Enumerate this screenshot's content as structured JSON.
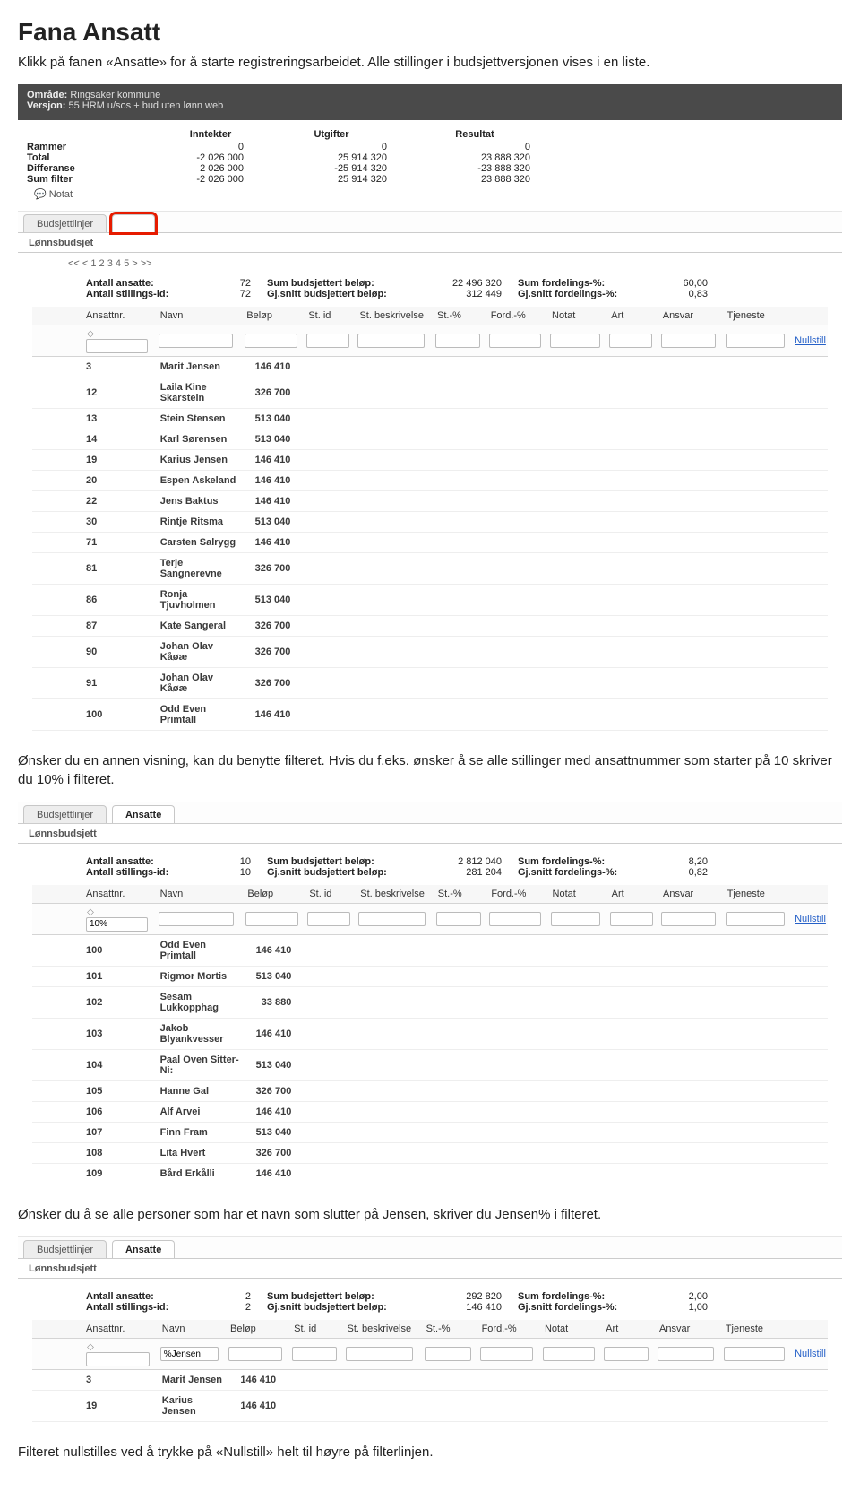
{
  "heading": "Fana Ansatt",
  "intro": "Klikk på fanen «Ansatte» for å starte registreringsarbeidet. Alle stillinger i budsjettversjonen vises i en liste.",
  "shot1": {
    "area_label": "Område:",
    "area_value": "Ringsaker kommune",
    "version_label": "Versjon:",
    "version_value": "55 HRM u/sos + bud uten lønn web",
    "summary": {
      "headers": [
        "",
        "Inntekter",
        "Utgifter",
        "Resultat"
      ],
      "rows": [
        {
          "label": "Rammer",
          "inntekter": "0",
          "utgifter": "0",
          "resultat": "0"
        },
        {
          "label": "Total",
          "inntekter": "-2 026 000",
          "utgifter": "25 914 320",
          "resultat": "23 888 320"
        },
        {
          "label": "Differanse",
          "inntekter": "2 026 000",
          "utgifter": "-25 914 320",
          "resultat": "-23 888 320"
        },
        {
          "label": "Sum filter",
          "inntekter": "-2 026 000",
          "utgifter": "25 914 320",
          "resultat": "23 888 320"
        }
      ]
    },
    "notat": "Notat",
    "tab1": "Budsjettlinjer",
    "tab2_blank": "",
    "panel_title": "Lønnsbudsjet",
    "pager": "<< < 1 2 3 4 5 > >>",
    "stats": {
      "antall_ansatte_lbl": "Antall ansatte:",
      "antall_ansatte_val": "72",
      "antall_stillingsid_lbl": "Antall stillings-id:",
      "antall_stillingsid_val": "72",
      "sum_budsjettert_lbl": "Sum budsjettert beløp:",
      "sum_budsjettert_val": "22 496 320",
      "gj_snitt_lbl": "Gj.snitt budsjettert beløp:",
      "gj_snitt_val": "312 449",
      "sum_ford_lbl": "Sum fordelings-%:",
      "sum_ford_val": "60,00",
      "gj_snitt_ford_lbl": "Gj.snitt fordelings-%:",
      "gj_snitt_ford_val": "0,83"
    },
    "columns": [
      "Ansattnr.",
      "Navn",
      "Beløp",
      "St. id",
      "St. beskrivelse",
      "St.-%",
      "Ford.-%",
      "Notat",
      "Art",
      "Ansvar",
      "Tjeneste"
    ],
    "nullstill": "Nullstill",
    "rows": [
      {
        "nr": "3",
        "navn": "Marit Jensen",
        "belop": "146 410"
      },
      {
        "nr": "12",
        "navn": "Laila Kine Skarstein",
        "belop": "326 700"
      },
      {
        "nr": "13",
        "navn": "Stein Stensen",
        "belop": "513 040"
      },
      {
        "nr": "14",
        "navn": "Karl Sørensen",
        "belop": "513 040"
      },
      {
        "nr": "19",
        "navn": "Karius Jensen",
        "belop": "146 410"
      },
      {
        "nr": "20",
        "navn": "Espen Askeland",
        "belop": "146 410"
      },
      {
        "nr": "22",
        "navn": "Jens Baktus",
        "belop": "146 410"
      },
      {
        "nr": "30",
        "navn": "Rintje Ritsma",
        "belop": "513 040"
      },
      {
        "nr": "71",
        "navn": "Carsten Salrygg",
        "belop": "146 410"
      },
      {
        "nr": "81",
        "navn": "Terje Sangnerevne",
        "belop": "326 700"
      },
      {
        "nr": "86",
        "navn": "Ronja Tjuvholmen",
        "belop": "513 040"
      },
      {
        "nr": "87",
        "navn": "Kate Sangeral",
        "belop": "326 700"
      },
      {
        "nr": "90",
        "navn": "Johan Olav Kåøæ",
        "belop": "326 700"
      },
      {
        "nr": "91",
        "navn": "Johan Olav Kåøæ",
        "belop": "326 700"
      },
      {
        "nr": "100",
        "navn": "Odd Even Primtall",
        "belop": "146 410"
      }
    ]
  },
  "text2": "Ønsker du en annen visning, kan du benytte filteret. Hvis du f.eks. ønsker å se alle stillinger med ansattnummer som starter på 10 skriver du 10% i filteret.",
  "shot2": {
    "tab1": "Budsjettlinjer",
    "tab2": "Ansatte",
    "panel_title": "Lønnsbudsjett",
    "stats": {
      "antall_ansatte_lbl": "Antall ansatte:",
      "antall_ansatte_val": "10",
      "antall_stillingsid_lbl": "Antall stillings-id:",
      "antall_stillingsid_val": "10",
      "sum_budsjettert_lbl": "Sum budsjettert beløp:",
      "sum_budsjettert_val": "2 812 040",
      "gj_snitt_lbl": "Gj.snitt budsjettert beløp:",
      "gj_snitt_val": "281 204",
      "sum_ford_lbl": "Sum fordelings-%:",
      "sum_ford_val": "8,20",
      "gj_snitt_ford_lbl": "Gj.snitt fordelings-%:",
      "gj_snitt_ford_val": "0,82"
    },
    "columns": [
      "Ansattnr.",
      "Navn",
      "Beløp",
      "St. id",
      "St. beskrivelse",
      "St.-%",
      "Ford.-%",
      "Notat",
      "Art",
      "Ansvar",
      "Tjeneste"
    ],
    "filter_ansattnr": "10%",
    "nullstill": "Nullstill",
    "rows": [
      {
        "nr": "100",
        "navn": "Odd Even Primtall",
        "belop": "146 410"
      },
      {
        "nr": "101",
        "navn": "Rigmor Mortis",
        "belop": "513 040"
      },
      {
        "nr": "102",
        "navn": "Sesam Lukkopphag",
        "belop": "33 880"
      },
      {
        "nr": "103",
        "navn": "Jakob Blyankvesser",
        "belop": "146 410"
      },
      {
        "nr": "104",
        "navn": "Paal Oven Sitter-Ni:",
        "belop": "513 040"
      },
      {
        "nr": "105",
        "navn": "Hanne Gal",
        "belop": "326 700"
      },
      {
        "nr": "106",
        "navn": "Alf Arvei",
        "belop": "146 410"
      },
      {
        "nr": "107",
        "navn": "Finn Fram",
        "belop": "513 040"
      },
      {
        "nr": "108",
        "navn": "Lita Hvert",
        "belop": "326 700"
      },
      {
        "nr": "109",
        "navn": "Bård Erkålli",
        "belop": "146 410"
      }
    ]
  },
  "text3": "Ønsker du å se alle personer som har et navn som slutter på Jensen, skriver du  Jensen% i filteret.",
  "shot3": {
    "tab1": "Budsjettlinjer",
    "tab2": "Ansatte",
    "panel_title": "Lønnsbudsjett",
    "stats": {
      "antall_ansatte_lbl": "Antall ansatte:",
      "antall_ansatte_val": "2",
      "antall_stillingsid_lbl": "Antall stillings-id:",
      "antall_stillingsid_val": "2",
      "sum_budsjettert_lbl": "Sum budsjettert beløp:",
      "sum_budsjettert_val": "292 820",
      "gj_snitt_lbl": "Gj.snitt budsjettert beløp:",
      "gj_snitt_val": "146 410",
      "sum_ford_lbl": "Sum fordelings-%:",
      "sum_ford_val": "2,00",
      "gj_snitt_ford_lbl": "Gj.snitt fordelings-%:",
      "gj_snitt_ford_val": "1,00"
    },
    "columns": [
      "Ansattnr.",
      "Navn",
      "Beløp",
      "St. id",
      "St. beskrivelse",
      "St.-%",
      "Ford.-%",
      "Notat",
      "Art",
      "Ansvar",
      "Tjeneste"
    ],
    "filter_navn": "%Jensen",
    "nullstill": "Nullstill",
    "rows": [
      {
        "nr": "3",
        "navn": "Marit Jensen",
        "belop": "146 410"
      },
      {
        "nr": "19",
        "navn": "Karius Jensen",
        "belop": "146 410"
      }
    ]
  },
  "text4": "Filteret nullstilles ved å trykke på «Nullstill» helt til høyre på filterlinjen."
}
